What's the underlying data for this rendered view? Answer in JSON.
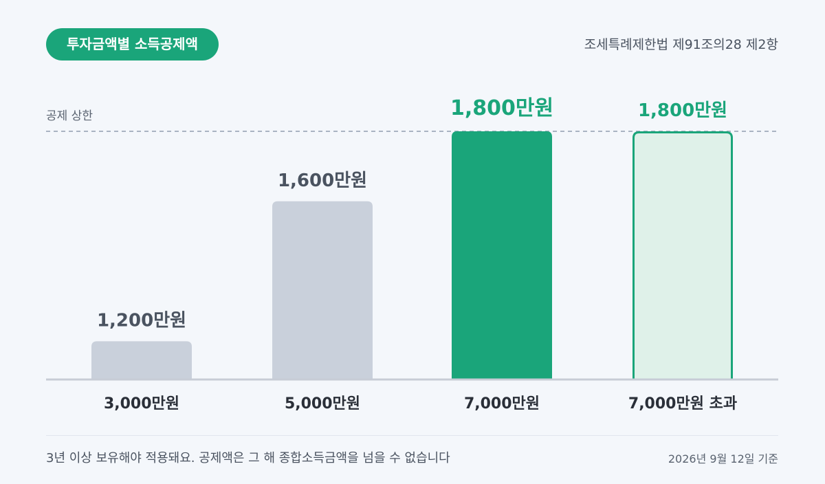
{
  "header": {
    "badge": "투자금액별 소득공제액",
    "law_reference": "조세특례제한법 제91조의28 제2항"
  },
  "colors": {
    "gray_bar": "#c9d0db",
    "green": "#1aa57a",
    "light_green_fill": "#dff1e9",
    "gray_value_text": "#4a5360",
    "green_value_text": "#1aa57a",
    "cap_line": "#a9b3c2",
    "axis_line": "#c7ccd6"
  },
  "chart_data": {
    "type": "bar",
    "categories": [
      "3,000만원",
      "5,000만원",
      "7,000만원",
      "7,000만원 초과"
    ],
    "values": [
      1200,
      1600,
      1800,
      1800
    ],
    "value_labels": [
      "1,200만원",
      "1,600만원",
      "1,800만원",
      "1,800만원"
    ],
    "bar_styles": [
      "gray",
      "gray",
      "green",
      "outline"
    ],
    "cap_label": "공제 상한",
    "cap_value": 1800,
    "ylim": [
      0,
      1800
    ]
  },
  "footer": {
    "note": "3년 이상 보유해야 적용돼요. 공제액은 그 해 종합소득금액을 넘을 수 없습니다",
    "as_of": "2026년 9월 12일 기준"
  }
}
